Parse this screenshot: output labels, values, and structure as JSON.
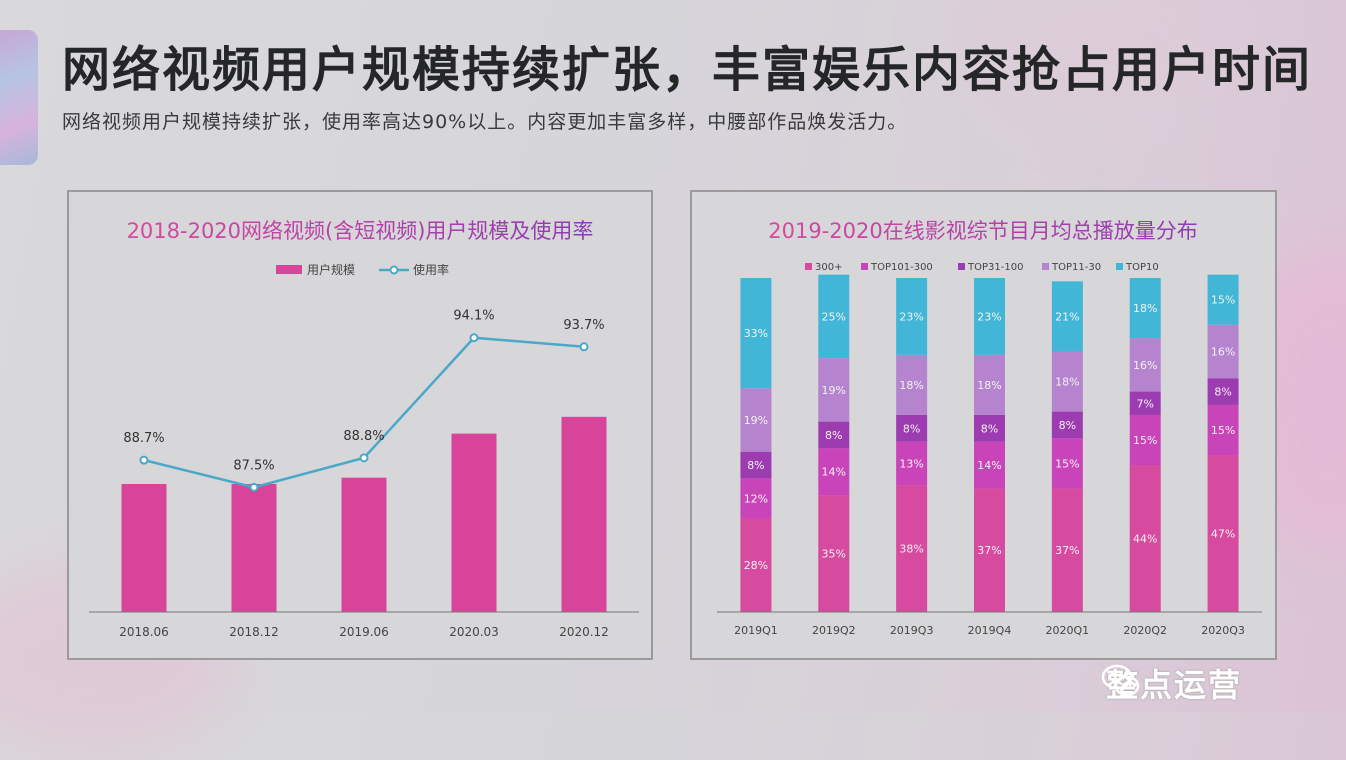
{
  "header": {
    "title": "网络视频用户规模持续扩张，丰富娱乐内容抢占用户时间",
    "subtitle": "网络视频用户规模持续扩张，使用率高达90%以上。内容更加丰富多样，中腰部作品焕发活力。"
  },
  "brand": {
    "name": "整点运营",
    "icon": "wechat-icon"
  },
  "colors": {
    "pink": "#d8449a",
    "line": "#4aa8c8",
    "s300": "#d64a9f",
    "sTop101": "#c944b9",
    "sTop31": "#9d3bb0",
    "sTop11": "#b683cf",
    "sTop10": "#41b6d6",
    "titlePink": "#d9499e",
    "titlePurple": "#8e3bb2"
  },
  "chart_data": [
    {
      "type": "bar",
      "title": "2018-2020网络视频(含短视频)用户规模及使用率",
      "categories": [
        "2018.06",
        "2018.12",
        "2019.06",
        "2020.03",
        "2020.12"
      ],
      "series": [
        {
          "name": "用户规模",
          "kind": "bar",
          "values": [
            6.1,
            6.1,
            6.4,
            8.5,
            9.3
          ]
        },
        {
          "name": "使用率",
          "kind": "line",
          "values": [
            88.7,
            87.5,
            88.8,
            94.1,
            93.7
          ],
          "labels": [
            "88.7%",
            "87.5%",
            "88.8%",
            "94.1%",
            "93.7%"
          ]
        }
      ],
      "ylim_bar": [
        0,
        16.2
      ],
      "ylim_line": [
        82,
        97
      ],
      "legend": "top-center",
      "grid": false
    },
    {
      "type": "bar",
      "stacked": true,
      "title": "2019-2020在线影视综节目月均总播放量分布",
      "categories": [
        "2019Q1",
        "2019Q2",
        "2019Q3",
        "2019Q4",
        "2020Q1",
        "2020Q2",
        "2020Q3"
      ],
      "series": [
        {
          "name": "300+",
          "values": [
            28,
            35,
            38,
            37,
            37,
            44,
            47
          ],
          "labels": [
            "28%",
            "35%",
            "38%",
            "37%",
            "37%",
            "44%",
            "47%"
          ]
        },
        {
          "name": "TOP101-300",
          "values": [
            12,
            14,
            13,
            14,
            15,
            15,
            15
          ],
          "labels": [
            "12%",
            "14%",
            "13%",
            "14%",
            "15%",
            "15%",
            "15%"
          ]
        },
        {
          "name": "TOP31-100",
          "values": [
            8,
            8,
            8,
            8,
            8,
            7,
            8
          ],
          "labels": [
            "8%",
            "8%",
            "8%",
            "8%",
            "8%",
            "7%",
            "8%"
          ]
        },
        {
          "name": "TOP11-30",
          "values": [
            19,
            19,
            18,
            18,
            18,
            16,
            16
          ],
          "labels": [
            "19%",
            "19%",
            "18%",
            "18%",
            "18%",
            "16%",
            "16%"
          ]
        },
        {
          "name": "TOP10",
          "values": [
            33,
            25,
            23,
            23,
            21,
            18,
            15
          ],
          "labels": [
            "33%",
            "25%",
            "23%",
            "23%",
            "21%",
            "18%",
            "15%"
          ]
        }
      ],
      "ylim": [
        0,
        100
      ],
      "legend": "top-center",
      "grid": false
    }
  ]
}
